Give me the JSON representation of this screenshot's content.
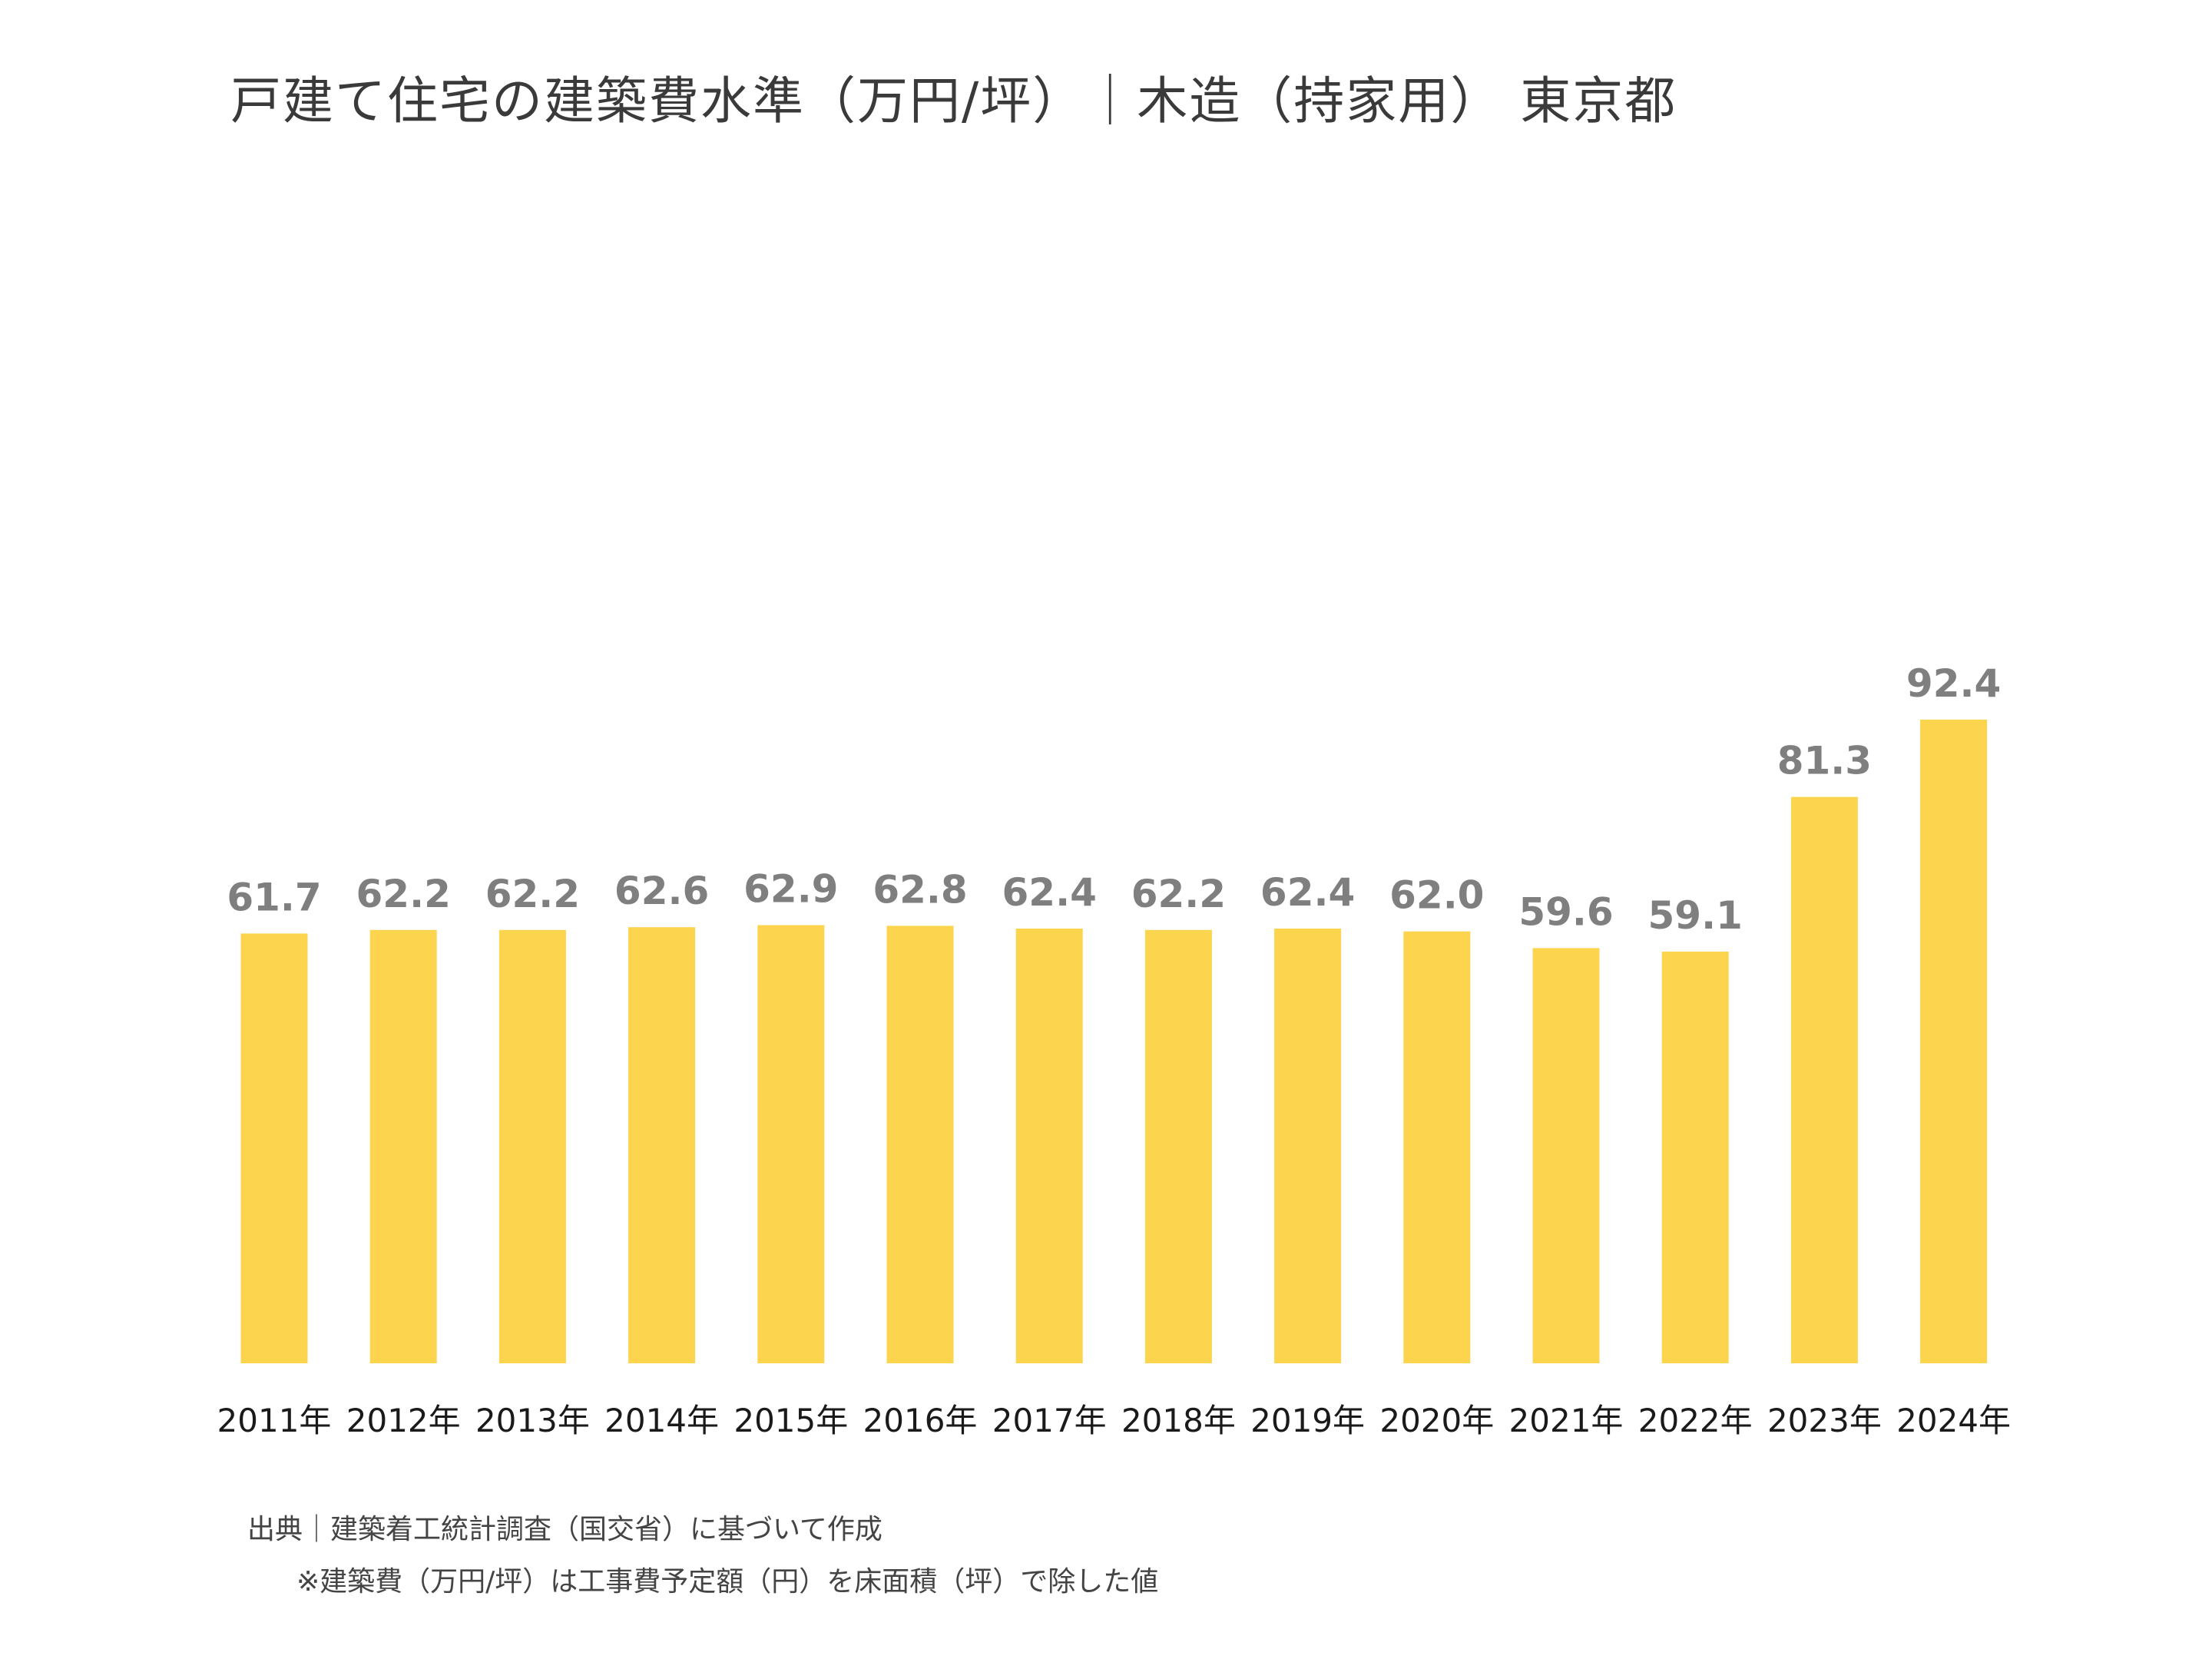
{
  "title": "戸建て住宅の建築費水準（万円/坪）｜木造（持家用） 東京都",
  "chart_data": {
    "type": "bar",
    "categories": [
      "2011年",
      "2012年",
      "2013年",
      "2014年",
      "2015年",
      "2016年",
      "2017年",
      "2018年",
      "2019年",
      "2020年",
      "2021年",
      "2022年",
      "2023年",
      "2024年"
    ],
    "values": [
      61.7,
      62.2,
      62.2,
      62.6,
      62.9,
      62.8,
      62.4,
      62.2,
      62.4,
      62.0,
      59.6,
      59.1,
      81.3,
      92.4
    ],
    "value_labels": [
      "61.7",
      "62.2",
      "62.2",
      "62.6",
      "62.9",
      "62.8",
      "62.4",
      "62.2",
      "62.4",
      "62.0",
      "59.6",
      "59.1",
      "81.3",
      "92.4"
    ],
    "ylim": [
      0,
      100
    ],
    "grid": false,
    "legend": "none",
    "bar_color": "#FDD44E",
    "label_color": "#7F7F7F"
  },
  "notes": {
    "source": "出典｜建築着工統計調査（国交省）に基づいて作成",
    "footnote": "※建築費（万円/坪）は工事費予定額（円）を床面積（坪）で除した値"
  }
}
